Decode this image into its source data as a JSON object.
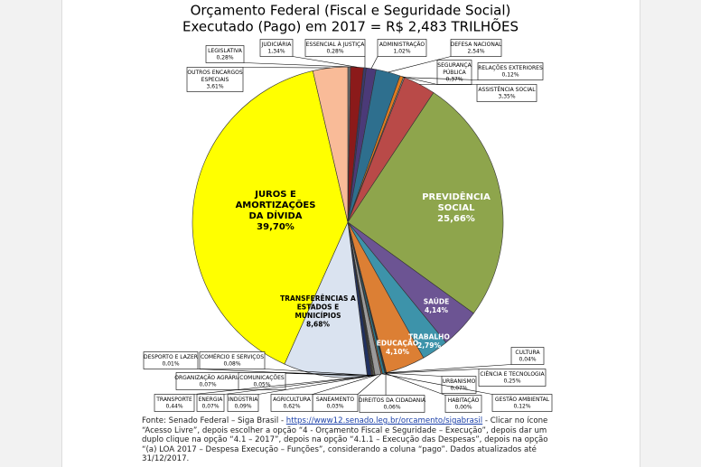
{
  "chart_data": {
    "type": "pie",
    "title": "Orçamento Federal (Fiscal e Seguridade Social)",
    "subtitle": "Executado (Pago) em 2017 = R$ 2,483 TRILHÕES",
    "categories": [
      "LEGISLATIVA",
      "JUDICIÁRIA",
      "ESSENCIAL À JUSTIÇA",
      "ADMINISTRAÇÃO",
      "DEFESA NACIONAL",
      "SEGURANÇA PÚBLICA",
      "RELAÇÕES EXTERIORES",
      "ASSISTÊNCIA SOCIAL",
      "PREVIDÊNCIA SOCIAL",
      "SAÚDE",
      "TRABALHO",
      "EDUCAÇÃO",
      "CULTURA",
      "DIREITOS DA CIDADANIA",
      "URBANISMO",
      "HABITAÇÃO",
      "CIÊNCIA E TECNOLOGIA",
      "GESTÃO AMBIENTAL",
      "SANEAMENTO",
      "AGRICULTURA",
      "ORGANIZAÇÃO AGRÁRIA",
      "INDÚSTRIA",
      "COMÉRCIO E SERVIÇOS",
      "COMUNICAÇÕES",
      "ENERGIA",
      "TRANSPORTE",
      "DESPORTO E LAZER",
      "TRANSFERÊNCIAS A ESTADOS E MUNICÍPIOS",
      "JUROS E AMORTIZAÇÕES DA DÍVIDA",
      "OUTROS ENCARGOS ESPECIAIS"
    ],
    "values": [
      0.28,
      1.34,
      0.28,
      1.02,
      2.54,
      0.37,
      0.12,
      3.35,
      25.66,
      4.14,
      2.79,
      4.1,
      0.04,
      0.06,
      0.07,
      0.0,
      0.25,
      0.12,
      0.03,
      0.62,
      0.07,
      0.09,
      0.08,
      0.05,
      0.07,
      0.44,
      0.01,
      8.68,
      39.7,
      3.61
    ],
    "value_labels": [
      "0,28%",
      "1,34%",
      "0,28%",
      "1,02%",
      "2,54%",
      "0,37%",
      "0,12%",
      "3,35%",
      "25,66%",
      "4,14%",
      "2,79%",
      "4,10%",
      "0,04%",
      "0,06%",
      "0,07%",
      "0,00%",
      "0,25%",
      "0,12%",
      "0,03%",
      "0,62%",
      "0,07%",
      "0,09%",
      "0,08%",
      "0,05%",
      "0,07%",
      "0,44%",
      "0,01%",
      "8,68%",
      "39,70%",
      "3,61%"
    ],
    "colors": [
      "#6f6f6f",
      "#8b1a1a",
      "#3a3a6a",
      "#4b3a78",
      "#2e6f8e",
      "#e07b20",
      "#999999",
      "#b94a48",
      "#8ea54c",
      "#6c5493",
      "#3d93aa",
      "#dc7f34",
      "#1f3f6f",
      "#8b2a2a",
      "#5a7a2a",
      "#4a3a70",
      "#2a7a90",
      "#c06020",
      "#404040",
      "#9a9a9a",
      "#d07070",
      "#90b060",
      "#806090",
      "#40a0b0",
      "#e09040",
      "#203060",
      "#903030",
      "#dae3f0",
      "#ffff00",
      "#f9bb98"
    ],
    "source": "Fonte: Senado Federal – Siga Brasil -",
    "source_link": "https://www12.senado.leg.br/orcamento/sigabrasil",
    "source_rest": "- Clicar no ícone “Acesso Livre”, depois escolher a opção “4 - Orçamento Fiscal e Seguridade – Execução”, depois dar um duplo clique na opção “4.1 – 2017”, depois na opção “4.1.1 – Execução das Despesas”, depois na opção “(a) LOA 2017 – Despesa Execução – Funções”, considerando a coluna “pago”. Dados atualizados até 31/12/2017."
  }
}
